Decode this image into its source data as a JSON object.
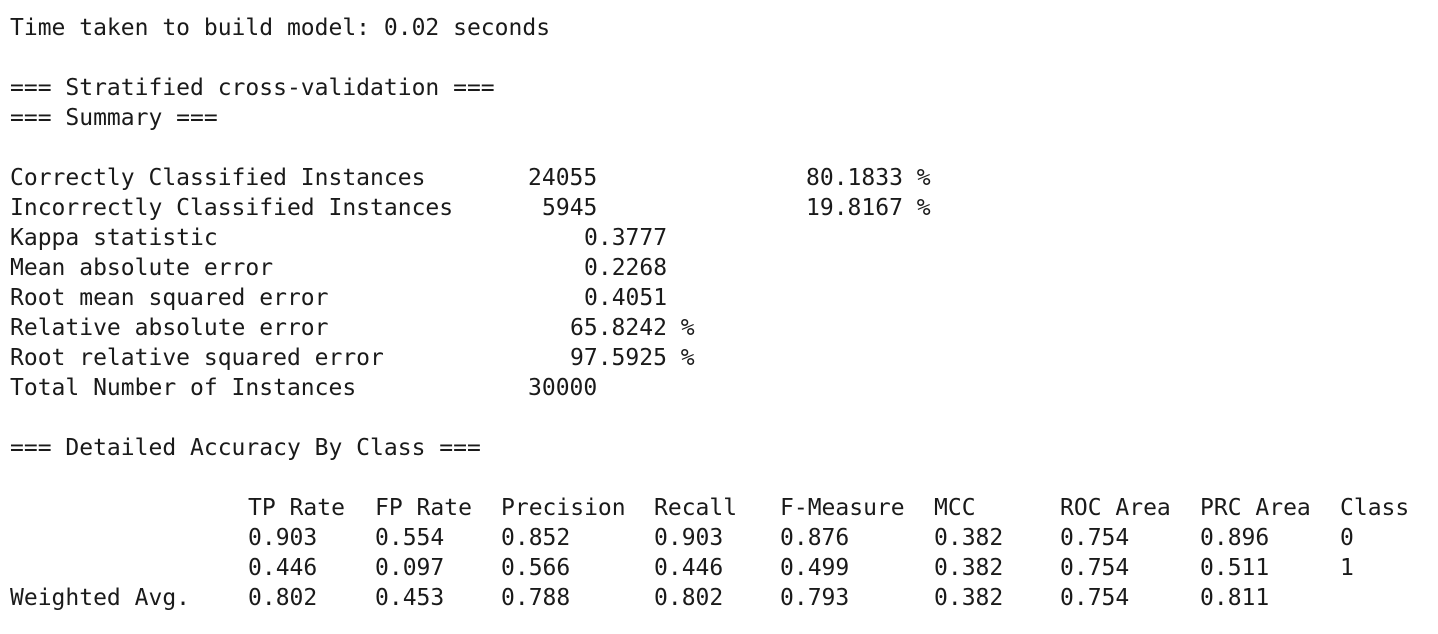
{
  "time_line": "Time taken to build model: 0.02 seconds",
  "heading_cv": "=== Stratified cross-validation ===",
  "heading_summary": "=== Summary ===",
  "summary": {
    "correct_label": "Correctly Classified Instances",
    "correct_value": "24055",
    "correct_pct": "80.1833 %",
    "incorrect_label": "Incorrectly Classified Instances",
    "incorrect_value": "5945",
    "incorrect_pct": "19.8167 %",
    "kappa_label": "Kappa statistic",
    "kappa_value": "0.3777",
    "mae_label": "Mean absolute error",
    "mae_value": "0.2268",
    "rmse_label": "Root mean squared error",
    "rmse_value": "0.4051",
    "rae_label": "Relative absolute error",
    "rae_value": "65.8242 %",
    "rrse_label": "Root relative squared error",
    "rrse_value": "97.5925 %",
    "total_label": "Total Number of Instances",
    "total_value": "30000"
  },
  "heading_detail": "=== Detailed Accuracy By Class ===",
  "detail": {
    "headers": [
      "TP Rate",
      "FP Rate",
      "Precision",
      "Recall",
      "F-Measure",
      "MCC",
      "ROC Area",
      "PRC Area",
      "Class"
    ],
    "rows": [
      {
        "label": "",
        "values": [
          "0.903",
          "0.554",
          "0.852",
          "0.903",
          "0.876",
          "0.382",
          "0.754",
          "0.896",
          "0"
        ]
      },
      {
        "label": "",
        "values": [
          "0.446",
          "0.097",
          "0.566",
          "0.446",
          "0.499",
          "0.382",
          "0.754",
          "0.511",
          "1"
        ]
      },
      {
        "label": "Weighted Avg.",
        "values": [
          "0.802",
          "0.453",
          "0.788",
          "0.802",
          "0.793",
          "0.382",
          "0.754",
          "0.811",
          ""
        ]
      }
    ]
  }
}
